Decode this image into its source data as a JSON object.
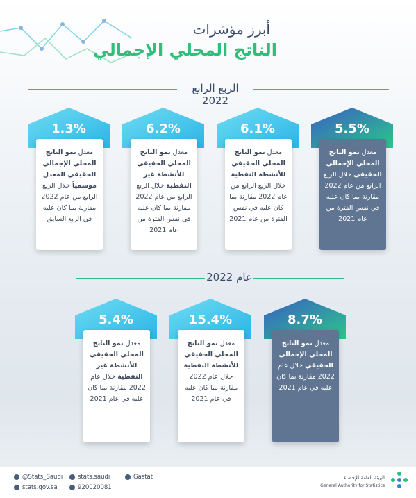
{
  "header": {
    "title_line1": "أبرز مؤشرات",
    "title_line2": "الناتج المحلي الإجمالي"
  },
  "sections": [
    {
      "label": "الربع الرابع 2022",
      "cards": [
        {
          "value": "5.5%",
          "prefix": "معدل",
          "bold": "نمو الناتج المحلي الإجمالي الحقيقي",
          "text": "خلال الربع الرابع من عام 2022 مقارنة بما كان عليه في نفس الفترة من عام 2021"
        },
        {
          "value": "6.1%",
          "prefix": "معدل",
          "bold": "نمو الناتج المحلي الحقيقي للأنشطة النفطية",
          "text": "خلال الربع الرابع من عام 2022 مقارنة بما كان عليه في نفس الفترة من عام 2021"
        },
        {
          "value": "6.2%",
          "prefix": "معدل",
          "bold": "نمو الناتج المحلي الحقيقي للأنشطة غير النفطية",
          "text": "خلال الربع الرابع من عام 2022 مقارنة بما كان عليه في نفس الفترة من عام 2021"
        },
        {
          "value": "1.3%",
          "prefix": "معدل",
          "bold": "نمو الناتج المحلي الإجمالي الحقيقي المعدل موسمياً",
          "text": "خلال الربع الرابع من عام 2022 مقارنة بما كان عليه في الربع السابق"
        }
      ]
    },
    {
      "label": "عام 2022",
      "cards": [
        {
          "value": "8.7%",
          "prefix": "معدل",
          "bold": "نمو الناتج المحلي الإجمالي الحقيقي",
          "text": "خلال عام 2022 مقارنة بما كان عليه في عام 2021"
        },
        {
          "value": "15.4%",
          "prefix": "معدل",
          "bold": "نمو الناتج المحلي الحقيقي للأنشطة النفطية",
          "text": "خلال عام 2022 مقارنة بما كان عليه في عام 2021"
        },
        {
          "value": "5.4%",
          "prefix": "معدل",
          "bold": "نمو الناتج المحلي الحقيقي للأنشطة غير النفطية",
          "text": "خلال عام 2022 مقارنة بما كان عليه في عام 2021"
        }
      ]
    }
  ],
  "footer": {
    "twitter": "@Stats_Saudi",
    "instagram": "stats.saudi",
    "snapchat": "Gastat",
    "website": "stats.gov.sa",
    "phone": "920020081",
    "logo_ar": "الهيئة العامة للإحصاء",
    "logo_en": "General Authority for Statistics"
  }
}
